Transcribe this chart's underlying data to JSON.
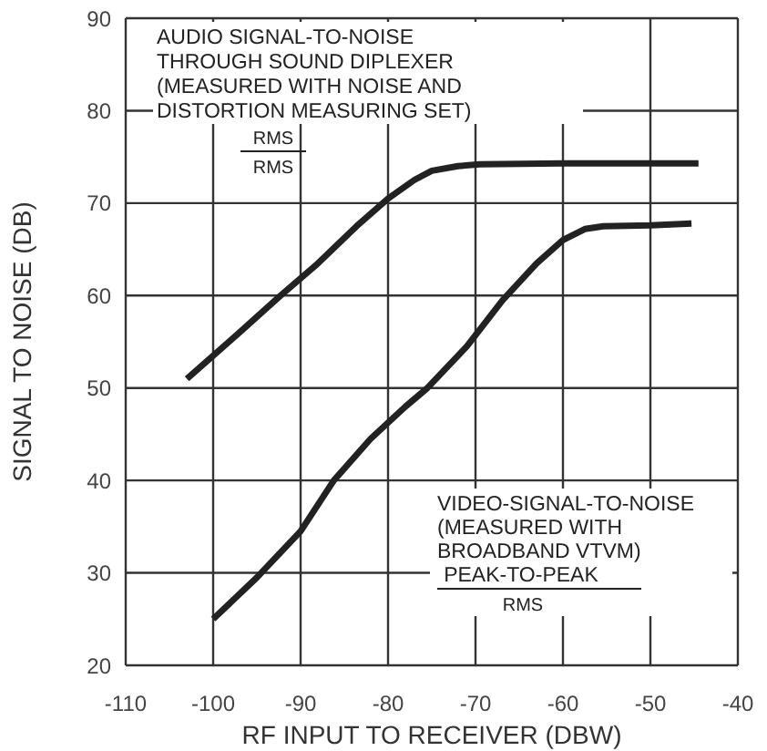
{
  "chart_data": {
    "type": "line",
    "xlabel": "RF INPUT TO RECEIVER (DBW)",
    "ylabel": "SIGNAL TO NOISE (DB)",
    "xlim": [
      -110,
      -40
    ],
    "xticks": [
      -110,
      -100,
      -90,
      -80,
      -70,
      -60,
      -50,
      -40
    ],
    "ylim": [
      20,
      90
    ],
    "yticks": [
      20,
      30,
      40,
      50,
      60,
      70,
      80,
      90
    ],
    "grid": true,
    "line_style": "solid",
    "series": [
      {
        "color": "#222222",
        "x": [
          -103,
          -97,
          -92.3,
          -88,
          -83.6,
          -80,
          -77,
          -75,
          -72,
          -69.5,
          -60,
          -50,
          -44.5
        ],
        "values": [
          51,
          56,
          60,
          63.5,
          67.5,
          70.5,
          72.5,
          73.5,
          74,
          74.2,
          74.3,
          74.3,
          74.3
        ]
      },
      {
        "color": "#222222",
        "x": [
          -100,
          -95,
          -90,
          -86.2,
          -82,
          -78,
          -75.5,
          -71,
          -66.9,
          -63,
          -60,
          -57.5,
          -55.4,
          -50,
          -45.3
        ],
        "values": [
          25,
          29.5,
          34.5,
          40,
          44.5,
          48,
          50,
          54.5,
          59.5,
          63.5,
          66,
          67.2,
          67.5,
          67.6,
          67.8
        ]
      }
    ],
    "annotations": [
      "AUDIO SIGNAL-TO-NOISE\nTHROUGH SOUND DIPLEXER\n(MEASURED WITH NOISE AND\nDISTORTION MEASURING SET)",
      "RMS",
      "RMS",
      "VIDEO-SIGNAL-TO-NOISE\n(MEASURED WITH\nBROADBAND VTVM)",
      "PEAK-TO-PEAK",
      "RMS"
    ]
  }
}
